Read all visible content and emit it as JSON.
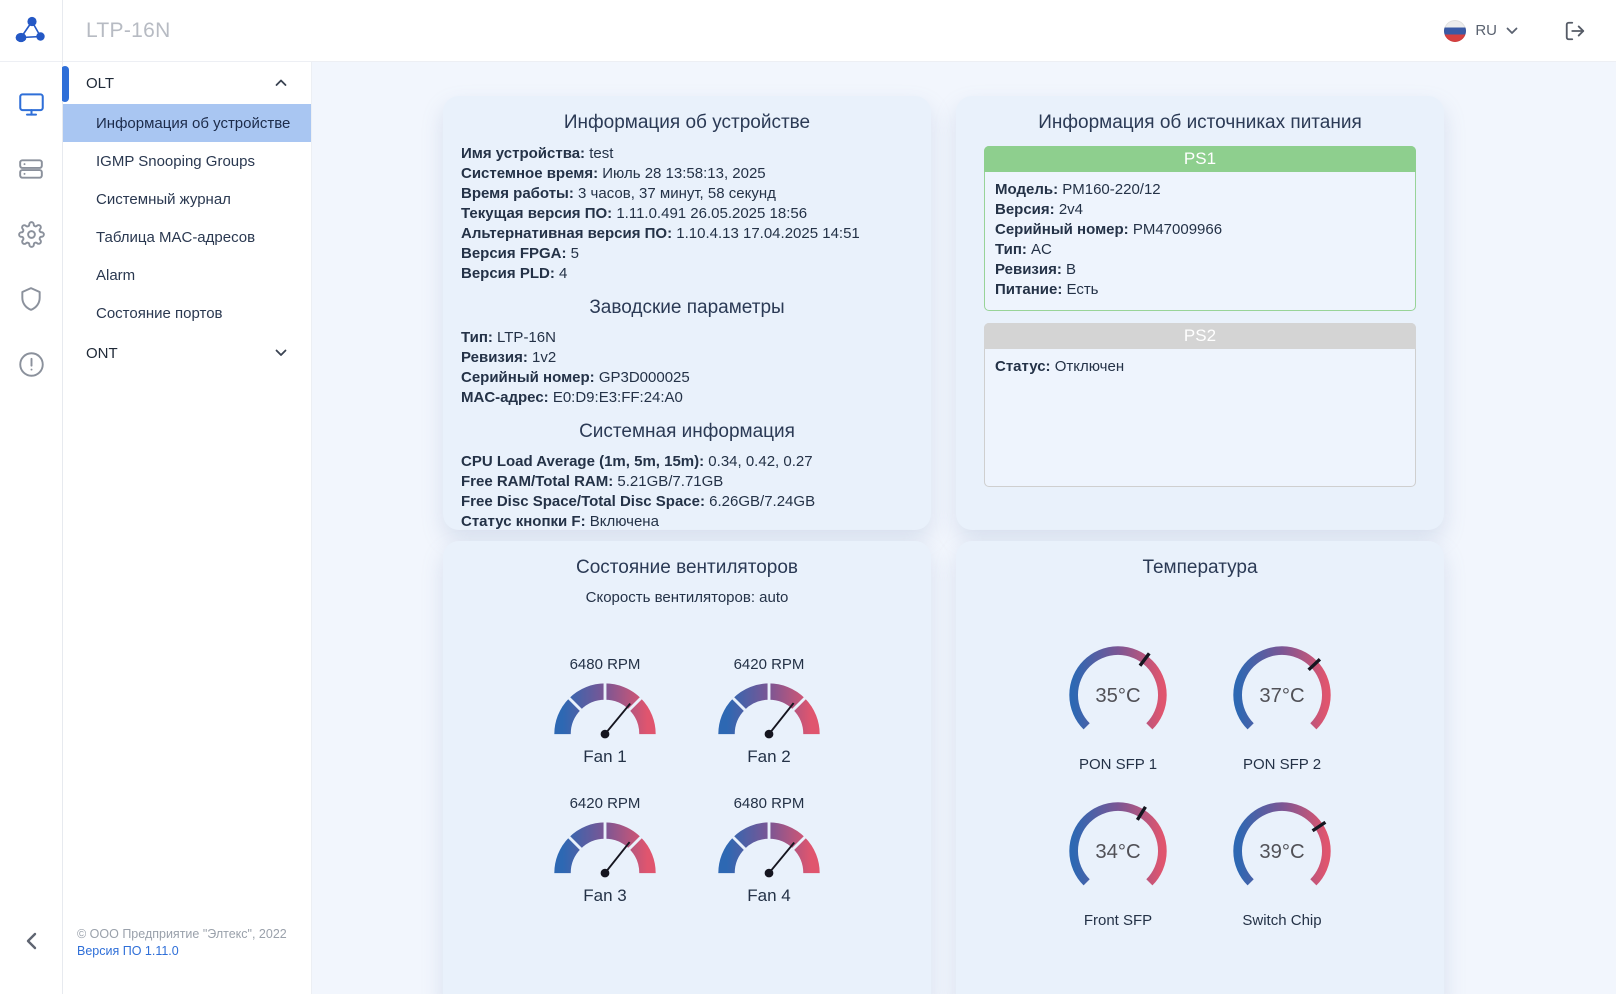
{
  "header": {
    "app_title": "LTP-16N",
    "language": "RU",
    "icons": [
      "eltex-logo",
      "russia-flag-icon",
      "chevron-down-icon",
      "logout-icon"
    ]
  },
  "sidebar": {
    "rail_icons": [
      "monitor-icon",
      "server-icon",
      "gear-icon",
      "shield-icon",
      "alert-circle-icon",
      "collapse-chevron-icon"
    ],
    "menu": {
      "sections": [
        {
          "label": "OLT",
          "expanded": true,
          "active_index": 0,
          "items": [
            "Информация об устройстве",
            "IGMP Snooping Groups",
            "Системный журнал",
            "Таблица MAC-адресов",
            "Alarm",
            "Состояние портов"
          ]
        },
        {
          "label": "ONT",
          "expanded": false,
          "items": []
        }
      ]
    },
    "footer": {
      "copyright": "© ООО Предприятие \"Элтекс\", 2022",
      "version": "Версия ПО 1.11.0"
    }
  },
  "cards": {
    "device_info": {
      "title": "Информация об устройстве",
      "rows": [
        {
          "label": "Имя устройства:",
          "value": "test"
        },
        {
          "label": "Системное время:",
          "value": "Июль 28 13:58:13, 2025"
        },
        {
          "label": "Время работы:",
          "value": "3 часов, 37 минут, 58 секунд"
        },
        {
          "label": "Текущая версия ПО:",
          "value": "1.11.0.491 26.05.2025 18:56"
        },
        {
          "label": "Альтернативная версия ПО:",
          "value": "1.10.4.13 17.04.2025 14:51"
        },
        {
          "label": "Версия FPGA:",
          "value": "5"
        },
        {
          "label": "Версия PLD:",
          "value": "4"
        }
      ],
      "subsections": [
        {
          "title": "Заводские параметры",
          "rows": [
            {
              "label": "Тип:",
              "value": "LTP-16N"
            },
            {
              "label": "Ревизия:",
              "value": "1v2"
            },
            {
              "label": "Серийный номер:",
              "value": "GP3D000025"
            },
            {
              "label": "MAC-адрес:",
              "value": "E0:D9:E3:FF:24:A0"
            }
          ]
        },
        {
          "title": "Системная информация",
          "rows": [
            {
              "label": "CPU Load Average (1m, 5m, 15m):",
              "value": "0.34, 0.42, 0.27"
            },
            {
              "label": "Free RAM/Total RAM:",
              "value": "5.21GB/7.71GB"
            },
            {
              "label": "Free Disc Space/Total Disc Space:",
              "value": "6.26GB/7.24GB"
            },
            {
              "label": "Статус кнопки F:",
              "value": "Включена"
            }
          ]
        }
      ]
    },
    "power": {
      "title": "Информация об источниках питания",
      "units": [
        {
          "name": "PS1",
          "status": "ok",
          "rows": [
            {
              "label": "Модель:",
              "value": "PM160-220/12"
            },
            {
              "label": "Версия:",
              "value": "2v4"
            },
            {
              "label": "Серийный номер:",
              "value": "PM47009966"
            },
            {
              "label": "Тип:",
              "value": "AC"
            },
            {
              "label": "Ревизия:",
              "value": "B"
            },
            {
              "label": "Питание:",
              "value": "Есть"
            }
          ]
        },
        {
          "name": "PS2",
          "status": "off",
          "rows": [
            {
              "label": "Статус:",
              "value": "Отключен"
            }
          ]
        }
      ]
    },
    "fans": {
      "title": "Состояние вентиляторов",
      "subtitle": "Скорость вентиляторов: auto",
      "items": [
        {
          "name": "Fan 1",
          "rpm": 6480,
          "rpm_label": "6480 RPM"
        },
        {
          "name": "Fan 2",
          "rpm": 6420,
          "rpm_label": "6420 RPM"
        },
        {
          "name": "Fan 3",
          "rpm": 6420,
          "rpm_label": "6420 RPM"
        },
        {
          "name": "Fan 4",
          "rpm": 6480,
          "rpm_label": "6480 RPM"
        }
      ]
    },
    "temperature": {
      "title": "Температура",
      "items": [
        {
          "name": "PON SFP 1",
          "celsius": 35,
          "label": "35°C"
        },
        {
          "name": "PON SFP 2",
          "celsius": 37,
          "label": "37°C"
        },
        {
          "name": "Front SFP",
          "celsius": 34,
          "label": "34°C"
        },
        {
          "name": "Switch Chip",
          "celsius": 39,
          "label": "39°C"
        }
      ]
    }
  },
  "colors": {
    "accent_blue": "#2f6fd8",
    "active_item_bg": "#a9c6f2",
    "card_bg": "#e9f1fb",
    "main_bg": "#f2f6fd",
    "ps_ok_green": "#8ecf8e",
    "ps_off_gray": "#d4d4d4",
    "gauge_blue": "#2d68b3",
    "gauge_purple": "#7b5694",
    "gauge_red": "#e0556e"
  }
}
